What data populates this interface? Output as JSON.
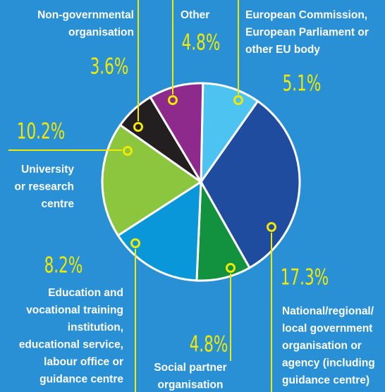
{
  "chart_data": {
    "type": "pie",
    "categories": [
      "European Commission,\nEuropean Parliament or\nother EU body",
      "National/regional/\nlocal government\norganisation or\nagency (including\nguidance centre)",
      "Social partner\norganisation",
      "Education and\nvocational training\ninstitution,\neducational service,\nlabour office or\nguidance centre",
      "University\nor research\ncentre",
      "Non-governmental\norganisation",
      "Other"
    ],
    "values": [
      5.1,
      17.3,
      4.8,
      8.2,
      10.2,
      3.6,
      4.8
    ],
    "value_labels": [
      "5.1%",
      "17.3%",
      "4.8%",
      "8.2%",
      "10.2%",
      "3.6%",
      "4.8%"
    ],
    "colors": [
      "#4cc3f0",
      "#1f4c9e",
      "#12923f",
      "#0a97d9",
      "#8cc63e",
      "#231f20",
      "#8e2a8b"
    ]
  }
}
